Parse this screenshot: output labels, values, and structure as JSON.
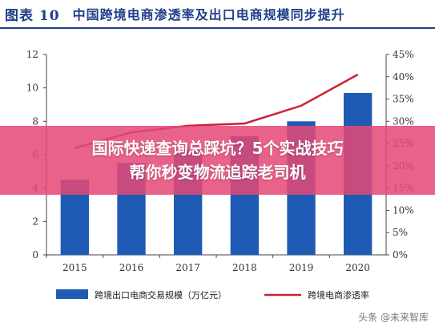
{
  "header": {
    "figure_label": "图表 10",
    "title": "中国跨境电商渗透率及出口电商规模同步提升"
  },
  "banner": {
    "line1": "国际快递查询总踩坑？5个实战技巧",
    "line2": "帮你秒变物流追踪老司机"
  },
  "watermark": "头条 @未来智库",
  "colors": {
    "bar": "#1f5bb4",
    "line": "#cc2233",
    "title": "#1f3f8a",
    "banner": "#e44876"
  },
  "chart_data": {
    "type": "bar",
    "categories": [
      "2015",
      "2016",
      "2017",
      "2018",
      "2019",
      "2020"
    ],
    "series": [
      {
        "name": "跨境出口电商交易规模（万亿元）",
        "type": "bar",
        "axis": "left",
        "values": [
          4.5,
          5.5,
          6.3,
          7.1,
          8.0,
          9.7
        ]
      },
      {
        "name": "跨境电商渗透率",
        "type": "line",
        "axis": "right",
        "values": [
          24,
          27.5,
          29,
          29.5,
          33.5,
          40.5
        ]
      }
    ],
    "y_left": {
      "min": 0,
      "max": 12,
      "ticks": [
        0,
        2,
        4,
        6,
        8,
        10,
        12
      ]
    },
    "y_right": {
      "min": 0,
      "max": 45,
      "ticks": [
        "0%",
        "5%",
        "10%",
        "15%",
        "20%",
        "25%",
        "30%",
        "35%",
        "40%",
        "45%"
      ]
    },
    "legend_position": "bottom"
  }
}
